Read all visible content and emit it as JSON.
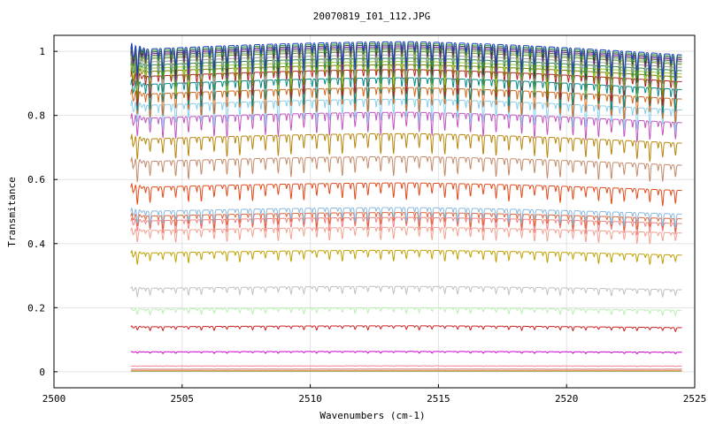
{
  "chart_data": {
    "type": "line",
    "title": "20070819_I01_112.JPG",
    "xlabel": "Wavenumbers (cm-1)",
    "ylabel": "Transmitance",
    "xlim": [
      2500,
      2525
    ],
    "ylim": [
      -0.05,
      1.05
    ],
    "x_ticks": [
      2500,
      2505,
      2510,
      2515,
      2520,
      2525
    ],
    "y_ticks": [
      0,
      0.2,
      0.4,
      0.6,
      0.8,
      1
    ],
    "x_tick_labels": [
      "2500",
      "2505",
      "2510",
      "2515",
      "2520",
      "2525"
    ],
    "y_tick_labels": [
      "0",
      "0.2",
      "0.4",
      "0.6",
      "0.8",
      "1"
    ],
    "grid": true,
    "x_range_of_data": [
      2503.0,
      2524.5
    ],
    "line_pattern": {
      "absorption_dip_spacing_cm1": 0.5,
      "dip_depth_fraction_of_level": 0.09,
      "trend": "levels rise slightly from 2503 to ~2514 then decline slightly toward 2524.5"
    },
    "series": [
      {
        "level": 1.005,
        "color": "#1f3fbf"
      },
      {
        "level": 1.0,
        "color": "#2ca02c"
      },
      {
        "level": 0.995,
        "color": "#3a3a3a"
      },
      {
        "level": 0.99,
        "color": "#7b1fa2"
      },
      {
        "level": 0.985,
        "color": "#556b2f"
      },
      {
        "level": 0.98,
        "color": "#8fbc8f"
      },
      {
        "level": 0.975,
        "color": "#6b8e23"
      },
      {
        "level": 0.965,
        "color": "#a0a0a0"
      },
      {
        "level": 0.955,
        "color": "#2e8b57"
      },
      {
        "level": 0.945,
        "color": "#9acd32"
      },
      {
        "level": 0.935,
        "color": "#808000"
      },
      {
        "level": 0.92,
        "color": "#b22222"
      },
      {
        "level": 0.895,
        "color": "#008b8b"
      },
      {
        "level": 0.865,
        "color": "#d2691e"
      },
      {
        "level": 0.83,
        "color": "#87ceeb"
      },
      {
        "level": 0.79,
        "color": "#c154c1"
      },
      {
        "level": 0.725,
        "color": "#b8860b"
      },
      {
        "level": 0.655,
        "color": "#c48a6a"
      },
      {
        "level": 0.575,
        "color": "#e24a1a"
      },
      {
        "level": 0.5,
        "color": "#87b8e0"
      },
      {
        "level": 0.485,
        "color": "#e0663c"
      },
      {
        "level": 0.47,
        "color": "#f08080"
      },
      {
        "level": 0.44,
        "color": "#f4a090"
      },
      {
        "level": 0.37,
        "color": "#c0a000"
      },
      {
        "level": 0.26,
        "color": "#c0c0c0"
      },
      {
        "level": 0.195,
        "color": "#b8f0b0"
      },
      {
        "level": 0.14,
        "color": "#cc1f1f"
      },
      {
        "level": 0.062,
        "color": "#d000d0"
      },
      {
        "level": 0.018,
        "color": "#f08090"
      },
      {
        "level": 0.008,
        "color": "#cc6666"
      },
      {
        "level": 0.003,
        "color": "#e08020"
      },
      {
        "level": 0.001,
        "color": "#90c090"
      }
    ]
  }
}
